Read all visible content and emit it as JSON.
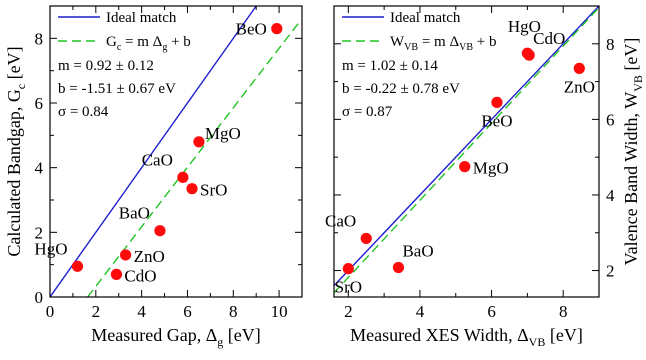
{
  "chart_data": [
    {
      "type": "scatter",
      "xlabel": {
        "main": "Measured Gap, Δ",
        "sub": "g",
        "unit": " [eV]"
      },
      "ylabel": {
        "main": "Calculated Bandgap, G",
        "sub": "c",
        "unit": " [eV]"
      },
      "xlim": [
        0,
        11
      ],
      "ylim": [
        0,
        9
      ],
      "xticks": [
        0,
        2,
        4,
        6,
        8,
        10
      ],
      "yticks": [
        0,
        2,
        4,
        6,
        8
      ],
      "y_axis_side": "left",
      "points": [
        {
          "label": "HgO",
          "x": 1.2,
          "y": 0.95,
          "label_pos": "upper-left"
        },
        {
          "label": "CdO",
          "x": 2.9,
          "y": 0.7,
          "label_pos": "right"
        },
        {
          "label": "ZnO",
          "x": 3.3,
          "y": 1.3,
          "label_pos": "right"
        },
        {
          "label": "BaO",
          "x": 4.8,
          "y": 2.05,
          "label_pos": "upper-left"
        },
        {
          "label": "SrO",
          "x": 6.2,
          "y": 3.35,
          "label_pos": "right"
        },
        {
          "label": "CaO",
          "x": 5.8,
          "y": 3.7,
          "label_pos": "upper-left"
        },
        {
          "label": "MgO",
          "x": 6.5,
          "y": 4.8,
          "label_pos": "upper-right"
        },
        {
          "label": "BeO",
          "x": 9.9,
          "y": 8.3,
          "label_pos": "left"
        }
      ],
      "series": [
        {
          "name": "Ideal match",
          "style": "solid",
          "color": "#1f1fcf",
          "points": [
            [
              0,
              0
            ],
            [
              9,
              9
            ]
          ]
        },
        {
          "name": "fit",
          "style": "dashed",
          "color": "#22c422",
          "points": [
            [
              1.64,
              0
            ],
            [
              10.9,
              8.52
            ]
          ]
        }
      ],
      "legend": {
        "placement": "top-left",
        "entries": [
          {
            "style": "solid",
            "color": "#1f1fcf",
            "parts": [
              {
                "t": "Ideal match"
              }
            ]
          },
          {
            "style": "dashed",
            "color": "#22c422",
            "parts": [
              {
                "t": "G"
              },
              {
                "t": "c",
                "sub": true
              },
              {
                "t": " = m Δ"
              },
              {
                "t": "g",
                "sub": true
              },
              {
                "t": " + b"
              }
            ]
          }
        ],
        "stats": [
          "m = 0.92 ± 0.12",
          "b = -1.51 ± 0.67 eV",
          "σ = 0.84"
        ]
      },
      "marker_color": "#ff0a0a"
    },
    {
      "type": "scatter",
      "xlabel": {
        "main": "Measured XES Width, Δ",
        "sub": "VB",
        "unit": " [eV]"
      },
      "ylabel": {
        "main": "Valence Band Width, W",
        "sub": "VB",
        "unit": " [eV]"
      },
      "xlim": [
        1.6,
        9
      ],
      "ylim": [
        1.3,
        9
      ],
      "xticks": [
        2,
        4,
        6,
        8
      ],
      "yticks": [
        2,
        4,
        6,
        8
      ],
      "y_axis_side": "right",
      "points": [
        {
          "label": "SrO",
          "x": 2.0,
          "y": 2.05,
          "label_pos": "below"
        },
        {
          "label": "CaO",
          "x": 2.5,
          "y": 2.85,
          "label_pos": "upper-left"
        },
        {
          "label": "BaO",
          "x": 3.4,
          "y": 2.08,
          "label_pos": "above"
        },
        {
          "label": "MgO",
          "x": 5.25,
          "y": 4.75,
          "label_pos": "right"
        },
        {
          "label": "BeO",
          "x": 6.15,
          "y": 6.45,
          "label_pos": "below"
        },
        {
          "label": "HgO",
          "x": 7.0,
          "y": 7.75,
          "label_pos": "below-left"
        },
        {
          "label": "CdO",
          "x": 7.05,
          "y": 7.7,
          "label_pos": "above"
        },
        {
          "label": "ZnO",
          "x": 8.45,
          "y": 7.35,
          "label_pos": "below"
        }
      ],
      "series": [
        {
          "name": "Ideal match",
          "style": "solid",
          "color": "#1f1fcf",
          "points": [
            [
              1.6,
              1.6
            ],
            [
              9,
              9
            ]
          ]
        },
        {
          "name": "fit",
          "style": "dashed",
          "color": "#22c422",
          "points": [
            [
              1.6,
              1.41
            ],
            [
              9,
              8.96
            ]
          ]
        }
      ],
      "legend": {
        "placement": "top-left",
        "entries": [
          {
            "style": "solid",
            "color": "#1f1fcf",
            "parts": [
              {
                "t": "Ideal match"
              }
            ]
          },
          {
            "style": "dashed",
            "color": "#22c422",
            "parts": [
              {
                "t": "W"
              },
              {
                "t": "VB",
                "sub": true
              },
              {
                "t": " = m Δ"
              },
              {
                "t": "VB",
                "sub": true
              },
              {
                "t": " + b"
              }
            ]
          }
        ],
        "stats": [
          "m = 1.02 ± 0.14",
          "b = -0.22 ± 0.78 eV",
          "σ = 0.87"
        ]
      },
      "marker_color": "#ff0a0a"
    }
  ]
}
